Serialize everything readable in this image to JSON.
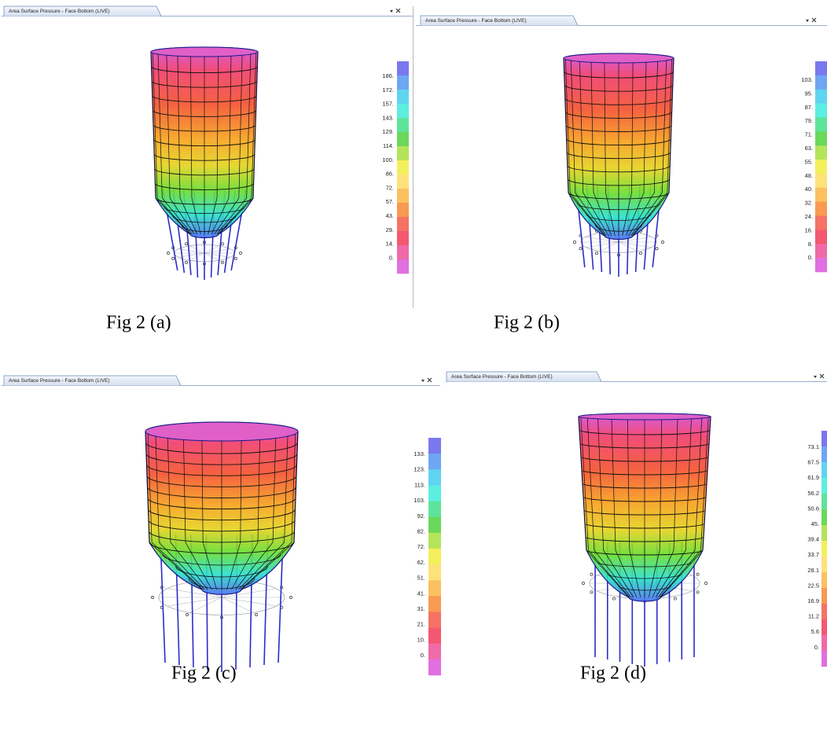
{
  "panels": [
    {
      "tab": "Area Surface Pressure - Face Bottom (LIVE)",
      "legend": [
        "186.",
        "172.",
        "157.",
        "143.",
        "129.",
        "114.",
        "100.",
        "86.",
        "72.",
        "57.",
        "43.",
        "29.",
        "14.",
        "0."
      ],
      "caption": "Fig 2 (a)"
    },
    {
      "tab": "Area Surface Pressure - Face Bottom (LIVE)",
      "legend": [
        "103.",
        "95.",
        "87.",
        "79.",
        "71.",
        "63.",
        "55.",
        "48.",
        "40.",
        "32.",
        "24.",
        "16.",
        "8.",
        "0."
      ],
      "caption": "Fig 2 (b)"
    },
    {
      "tab": "Area Surface Pressure - Face Bottom (LIVE)",
      "legend": [
        "133.",
        "123.",
        "113.",
        "103.",
        "92.",
        "82.",
        "72.",
        "62.",
        "51.",
        "41.",
        "31.",
        "21.",
        "10.",
        "0."
      ],
      "caption": "Fig 2 (c)"
    },
    {
      "tab": "Area Surface Pressure - Face Bottom (LIVE)",
      "legend": [
        "73.1",
        "67.5",
        "61.9",
        "56.2",
        "50.6",
        "45.",
        "39.4",
        "33.7",
        "28.1",
        "22.5",
        "16.9",
        "11.2",
        "5.6",
        "0."
      ],
      "caption": "Fig 2 (d)"
    }
  ]
}
